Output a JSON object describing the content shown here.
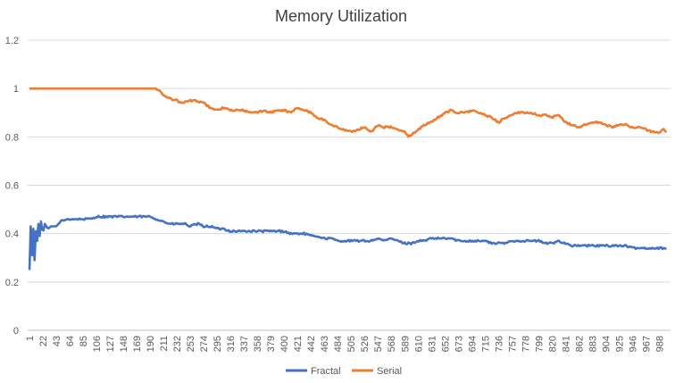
{
  "chart_data": {
    "type": "line",
    "title": "Memory Utilization",
    "xlabel": "",
    "ylabel": "",
    "ylim": [
      0,
      1.2
    ],
    "yticks": [
      "0",
      "0.2",
      "0.4",
      "0.6",
      "0.8",
      "1",
      "1.2"
    ],
    "xlim": [
      1,
      1000
    ],
    "xticks": [
      "1",
      "22",
      "43",
      "64",
      "85",
      "106",
      "127",
      "148",
      "169",
      "190",
      "211",
      "232",
      "253",
      "274",
      "295",
      "316",
      "337",
      "358",
      "379",
      "400",
      "421",
      "442",
      "463",
      "484",
      "505",
      "526",
      "547",
      "568",
      "589",
      "610",
      "631",
      "652",
      "673",
      "694",
      "715",
      "736",
      "757",
      "778",
      "799",
      "820",
      "841",
      "862",
      "883",
      "904",
      "925",
      "946",
      "967",
      "988"
    ],
    "grid": "horizontal",
    "legend_position": "bottom",
    "series": [
      {
        "name": "Fractal",
        "color": "#4472C4",
        "x": [
          1,
          3,
          5,
          7,
          9,
          11,
          13,
          15,
          17,
          19,
          22,
          25,
          30,
          35,
          43,
          50,
          60,
          70,
          85,
          95,
          106,
          120,
          127,
          140,
          148,
          160,
          169,
          180,
          190,
          200,
          211,
          220,
          232,
          245,
          253,
          265,
          274,
          285,
          295,
          305,
          316,
          326,
          337,
          347,
          358,
          368,
          379,
          390,
          400,
          410,
          421,
          432,
          442,
          452,
          463,
          473,
          484,
          494,
          505,
          515,
          526,
          536,
          547,
          557,
          568,
          578,
          589,
          600,
          610,
          620,
          631,
          641,
          652,
          662,
          673,
          683,
          694,
          704,
          715,
          725,
          736,
          746,
          757,
          767,
          778,
          788,
          799,
          809,
          820,
          830,
          841,
          851,
          862,
          872,
          883,
          893,
          904,
          914,
          925,
          935,
          946,
          956,
          967,
          977,
          988,
          995,
          1000
        ],
        "y": [
          0.25,
          0.43,
          0.31,
          0.42,
          0.29,
          0.41,
          0.37,
          0.44,
          0.39,
          0.45,
          0.4,
          0.44,
          0.42,
          0.43,
          0.43,
          0.45,
          0.46,
          0.46,
          0.46,
          0.46,
          0.47,
          0.47,
          0.47,
          0.47,
          0.47,
          0.47,
          0.47,
          0.47,
          0.47,
          0.46,
          0.45,
          0.44,
          0.44,
          0.44,
          0.43,
          0.44,
          0.43,
          0.43,
          0.42,
          0.42,
          0.41,
          0.41,
          0.41,
          0.41,
          0.41,
          0.41,
          0.41,
          0.41,
          0.41,
          0.4,
          0.4,
          0.4,
          0.39,
          0.39,
          0.38,
          0.38,
          0.37,
          0.37,
          0.37,
          0.37,
          0.37,
          0.37,
          0.38,
          0.37,
          0.38,
          0.37,
          0.36,
          0.36,
          0.37,
          0.37,
          0.38,
          0.38,
          0.38,
          0.38,
          0.37,
          0.37,
          0.37,
          0.37,
          0.37,
          0.36,
          0.36,
          0.36,
          0.37,
          0.37,
          0.37,
          0.37,
          0.37,
          0.36,
          0.36,
          0.37,
          0.36,
          0.35,
          0.35,
          0.35,
          0.35,
          0.35,
          0.35,
          0.35,
          0.35,
          0.35,
          0.34,
          0.34,
          0.34,
          0.34,
          0.34,
          0.34,
          0.34
        ]
      },
      {
        "name": "Serial",
        "color": "#ED7D31",
        "x": [
          1,
          22,
          43,
          64,
          85,
          106,
          127,
          148,
          169,
          190,
          200,
          205,
          211,
          220,
          232,
          240,
          253,
          260,
          274,
          285,
          295,
          305,
          316,
          326,
          337,
          347,
          358,
          368,
          379,
          390,
          400,
          410,
          421,
          432,
          442,
          452,
          463,
          473,
          484,
          494,
          505,
          515,
          526,
          536,
          547,
          557,
          568,
          578,
          589,
          595,
          600,
          610,
          620,
          631,
          641,
          652,
          662,
          673,
          683,
          694,
          704,
          715,
          725,
          736,
          746,
          757,
          767,
          778,
          788,
          799,
          809,
          820,
          830,
          841,
          851,
          862,
          872,
          883,
          893,
          904,
          914,
          925,
          935,
          946,
          956,
          967,
          977,
          988,
          995,
          1000
        ],
        "y": [
          1,
          1,
          1,
          1,
          1,
          1,
          1,
          1,
          1,
          1,
          1,
          0.99,
          0.97,
          0.96,
          0.95,
          0.94,
          0.95,
          0.95,
          0.94,
          0.92,
          0.91,
          0.92,
          0.91,
          0.91,
          0.91,
          0.9,
          0.9,
          0.91,
          0.9,
          0.91,
          0.91,
          0.9,
          0.92,
          0.91,
          0.9,
          0.88,
          0.87,
          0.85,
          0.84,
          0.83,
          0.82,
          0.83,
          0.84,
          0.82,
          0.85,
          0.84,
          0.84,
          0.83,
          0.82,
          0.8,
          0.81,
          0.83,
          0.85,
          0.86,
          0.88,
          0.9,
          0.91,
          0.9,
          0.9,
          0.91,
          0.9,
          0.89,
          0.88,
          0.86,
          0.88,
          0.89,
          0.9,
          0.9,
          0.9,
          0.89,
          0.89,
          0.88,
          0.89,
          0.86,
          0.85,
          0.84,
          0.85,
          0.86,
          0.86,
          0.85,
          0.84,
          0.85,
          0.85,
          0.84,
          0.84,
          0.83,
          0.82,
          0.82,
          0.83,
          0.82
        ]
      }
    ]
  }
}
